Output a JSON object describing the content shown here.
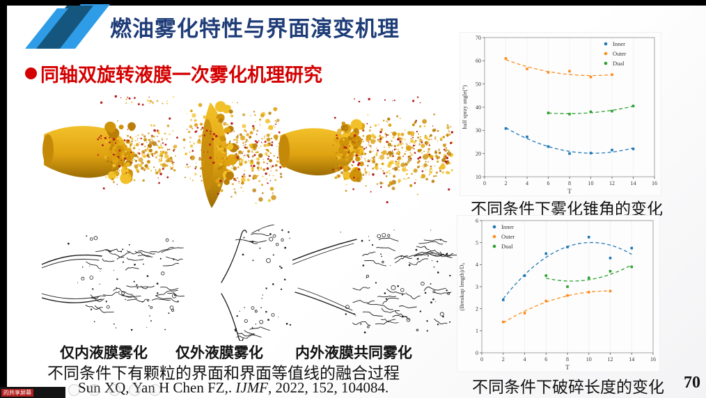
{
  "slide": {
    "title": "燃油雾化特性与界面演变机理",
    "bullet": "同轴双旋转液膜一次雾化机理研究",
    "image_labels": [
      "仅内液膜雾化",
      "仅外液膜雾化",
      "内外液膜共同雾化"
    ],
    "caption_images": "不同条件下有颗粒的界面和界面等值线的融合过程",
    "citation": {
      "prefix": "Sun XQ, Yan H  Chen FZ,. ",
      "journal": "IJMF",
      "suffix": ", 2022, 152, 104084."
    },
    "caption_chart_top": "不同条件下雾化锥角的变化",
    "caption_chart_bottom": "不同条件下破碎长度的变化",
    "page_number": "70"
  },
  "overlay": {
    "share_badge": "的共享屏幕"
  },
  "colors": {
    "title_blue": "#1e3c78",
    "accent_red": "#d40000",
    "deco_light_blue": "#2f9ce8",
    "deco_dark_blue": "#15567f",
    "inner": "#1f77b4",
    "outer": "#ff8c1a",
    "dual": "#2ca02c",
    "gold": "#e0a312",
    "gold_dark": "#b97d08",
    "gold_light": "#f2c12a",
    "particle_red": "#b81f1f",
    "sketch_ink": "#1c1c1c"
  },
  "decor": {
    "seed": 7
  },
  "chart_data": [
    {
      "type": "scatter",
      "title": "",
      "xlabel": "T",
      "ylabel": "half spray angle(°)",
      "xlim": [
        0,
        16
      ],
      "ylim": [
        10,
        70
      ],
      "xticks": [
        0,
        2,
        4,
        6,
        8,
        10,
        12,
        14,
        16
      ],
      "yticks": [
        10,
        20,
        30,
        40,
        50,
        60,
        70
      ],
      "grid": "faint-vertical",
      "legend_position": "top-right",
      "fit": "quadratic-dashed",
      "series": [
        {
          "name": "Inner",
          "color": "#1f77b4",
          "points": [
            [
              2,
              30.8
            ],
            [
              4,
              27.2
            ],
            [
              6,
              23
            ],
            [
              8,
              20
            ],
            [
              10,
              20.2
            ],
            [
              12,
              21.5
            ],
            [
              14,
              22
            ]
          ]
        },
        {
          "name": "Outer",
          "color": "#ff8c1a",
          "points": [
            [
              2,
              61
            ],
            [
              4,
              56.5
            ],
            [
              6,
              55
            ],
            [
              8,
              55.5
            ],
            [
              10,
              53
            ],
            [
              12,
              54
            ]
          ]
        },
        {
          "name": "Dual",
          "color": "#2ca02c",
          "points": [
            [
              6,
              37.5
            ],
            [
              8,
              37
            ],
            [
              10,
              38
            ],
            [
              12,
              38.3
            ],
            [
              14,
              40.5
            ]
          ]
        }
      ]
    },
    {
      "type": "scatter",
      "title": "",
      "xlabel": "T",
      "ylabel": "(Breakup length)/D₀",
      "xlim": [
        0,
        16
      ],
      "ylim": [
        0,
        6
      ],
      "xticks": [
        0,
        2,
        4,
        6,
        8,
        10,
        12,
        14,
        16
      ],
      "yticks": [
        0,
        1,
        2,
        3,
        4,
        5,
        6
      ],
      "grid": "faint-vertical",
      "legend_position": "top-left",
      "fit": "quadratic-dashed",
      "series": [
        {
          "name": "Inner",
          "color": "#1f77b4",
          "points": [
            [
              2,
              2.4
            ],
            [
              4,
              3.5
            ],
            [
              6,
              4.5
            ],
            [
              8,
              4.8
            ],
            [
              10,
              5.25
            ],
            [
              12,
              4.3
            ],
            [
              14,
              4.75
            ]
          ]
        },
        {
          "name": "Outer",
          "color": "#ff8c1a",
          "points": [
            [
              2,
              1.4
            ],
            [
              4,
              1.8
            ],
            [
              6,
              2.35
            ],
            [
              8,
              2.6
            ],
            [
              10,
              2.75
            ],
            [
              12,
              2.8
            ]
          ]
        },
        {
          "name": "Dual",
          "color": "#2ca02c",
          "points": [
            [
              6,
              3.5
            ],
            [
              8,
              3.0
            ],
            [
              10,
              3.4
            ],
            [
              12,
              3.7
            ],
            [
              14,
              3.9
            ]
          ]
        }
      ]
    }
  ]
}
